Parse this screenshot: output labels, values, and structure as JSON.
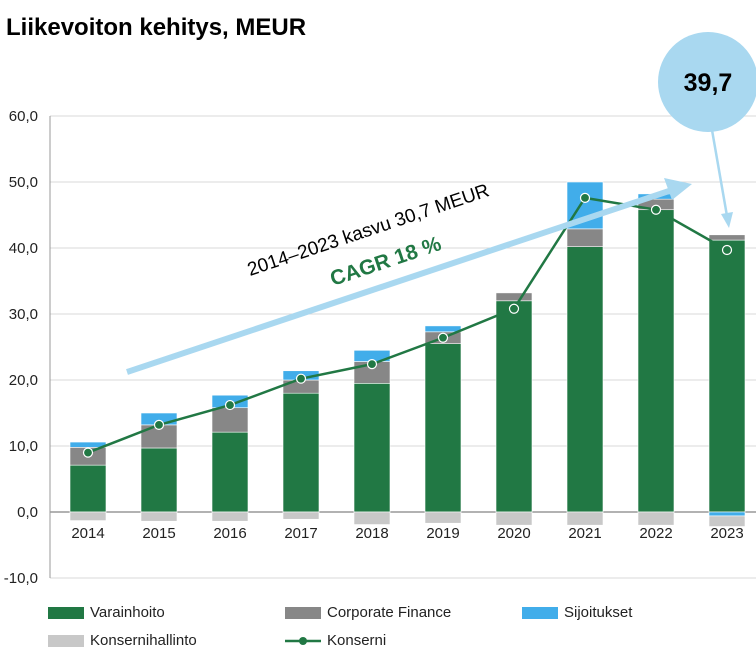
{
  "chart_data": {
    "type": "bar",
    "title": "Liikevoiton kehitys, MEUR",
    "xlabel": "",
    "ylabel": "",
    "ylim": [
      -10,
      60
    ],
    "yticks": [
      "-10,0",
      "0,0",
      "10,0",
      "20,0",
      "30,0",
      "40,0",
      "50,0",
      "60,0"
    ],
    "categories": [
      "2014",
      "2015",
      "2016",
      "2017",
      "2018",
      "2019",
      "2020",
      "2021",
      "2022",
      "2023"
    ],
    "series": [
      {
        "name": "Varainhoito",
        "kind": "bar",
        "color": "#217844",
        "values": [
          7.1,
          9.7,
          12.1,
          18.0,
          19.5,
          25.5,
          32.0,
          40.2,
          45.8,
          41.2
        ]
      },
      {
        "name": "Corporate Finance",
        "kind": "bar",
        "color": "#878787",
        "values": [
          2.7,
          3.5,
          3.7,
          2.0,
          3.3,
          1.8,
          1.2,
          2.7,
          1.6,
          0.8
        ]
      },
      {
        "name": "Sijoitukset",
        "kind": "bar",
        "color": "#41adea",
        "values": [
          0.8,
          1.8,
          1.9,
          1.4,
          1.7,
          0.9,
          0.0,
          7.1,
          0.8,
          -0.6
        ]
      },
      {
        "name": "Konsernihallinto",
        "kind": "bar",
        "color": "#c8c8c8",
        "values": [
          -1.3,
          -1.4,
          -1.4,
          -1.1,
          -1.9,
          -1.7,
          -2.0,
          -2.0,
          -2.0,
          -1.6
        ]
      },
      {
        "name": "Konserni",
        "kind": "line",
        "color": "#217844",
        "values": [
          9.0,
          13.2,
          16.2,
          20.2,
          22.4,
          26.4,
          30.8,
          47.6,
          45.8,
          39.7
        ]
      }
    ],
    "annotations": {
      "growth": "2014–2023 kasvu 30,7 MEUR",
      "cagr": "CAGR 18 %",
      "bubble": "39,7"
    },
    "legend_placement": "bottom"
  }
}
